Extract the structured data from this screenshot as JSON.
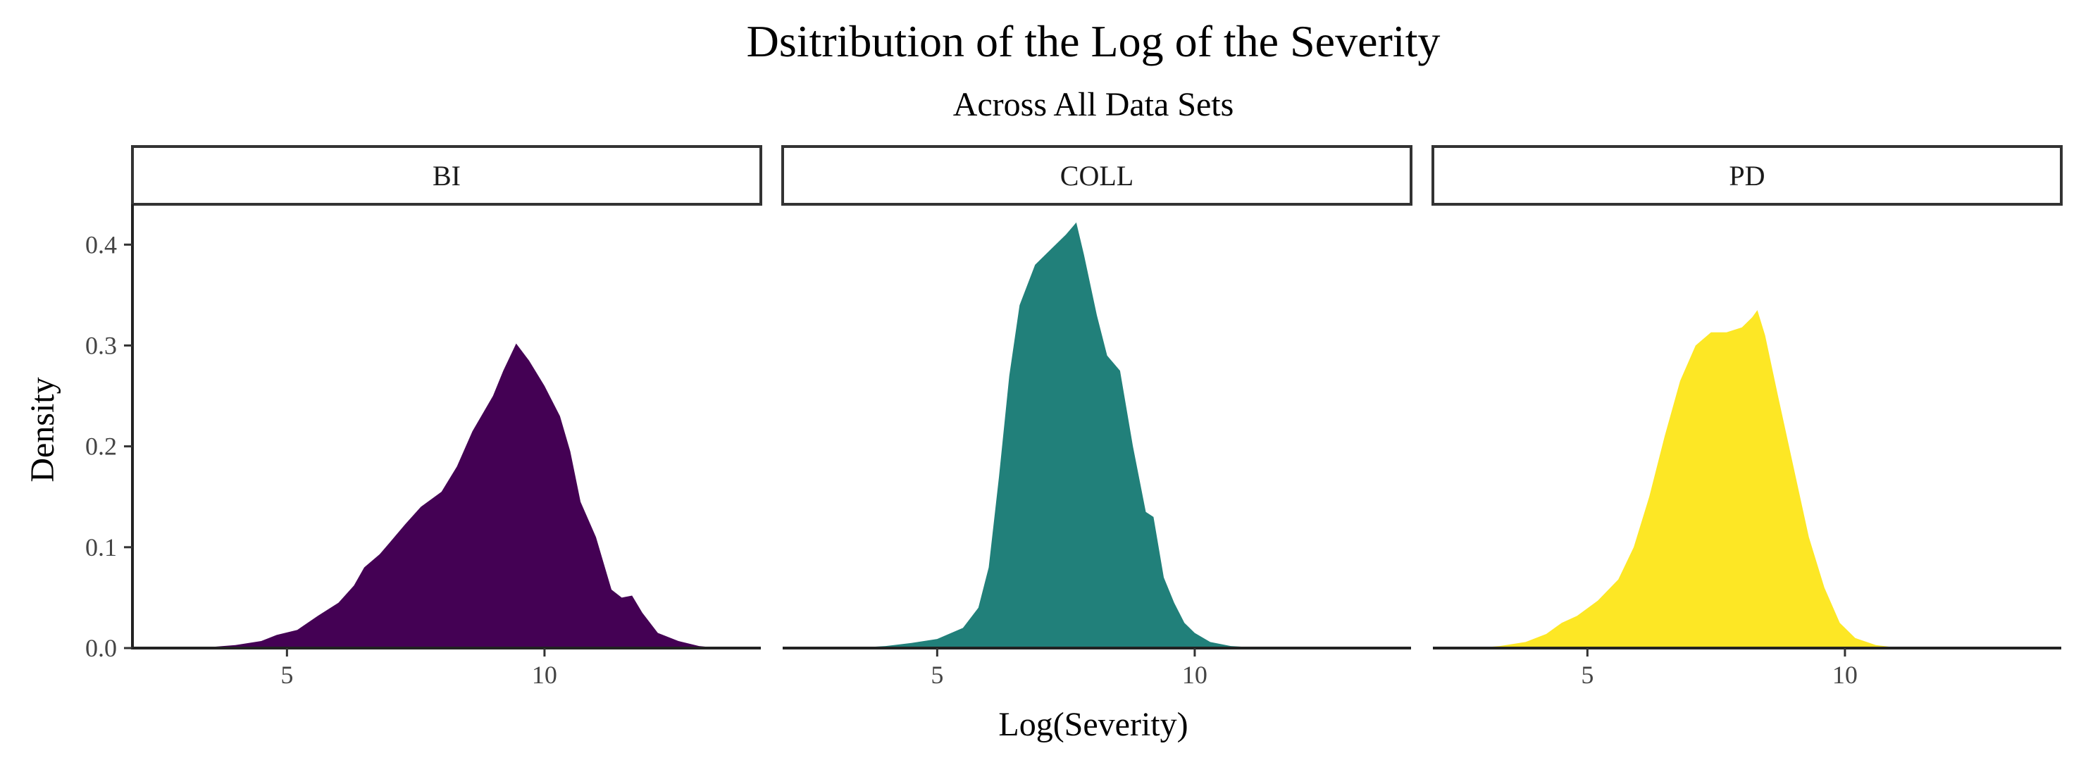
{
  "chart_data": {
    "type": "area",
    "title": "Dsitribution of the Log of the Severity",
    "subtitle": "Across All Data Sets",
    "xlabel": "Log(Severity)",
    "ylabel": "Density",
    "xlim": [
      2.0,
      14.2
    ],
    "ylim": [
      0,
      0.44
    ],
    "x_ticks": [
      5,
      10
    ],
    "y_ticks": [
      "0.0",
      "0.1",
      "0.2",
      "0.3",
      "0.4"
    ],
    "grid": false,
    "legend": "none",
    "panels": [
      {
        "name": "BI",
        "color": "#440154",
        "points": [
          [
            2.8,
            0.0
          ],
          [
            3.5,
            0.001
          ],
          [
            4.0,
            0.003
          ],
          [
            4.5,
            0.007
          ],
          [
            4.8,
            0.013
          ],
          [
            5.2,
            0.018
          ],
          [
            5.6,
            0.032
          ],
          [
            6.0,
            0.045
          ],
          [
            6.3,
            0.062
          ],
          [
            6.5,
            0.08
          ],
          [
            6.8,
            0.093
          ],
          [
            7.0,
            0.105
          ],
          [
            7.3,
            0.123
          ],
          [
            7.6,
            0.14
          ],
          [
            8.0,
            0.155
          ],
          [
            8.3,
            0.18
          ],
          [
            8.6,
            0.215
          ],
          [
            9.0,
            0.25
          ],
          [
            9.2,
            0.275
          ],
          [
            9.45,
            0.302
          ],
          [
            9.7,
            0.285
          ],
          [
            10.0,
            0.26
          ],
          [
            10.3,
            0.23
          ],
          [
            10.5,
            0.195
          ],
          [
            10.7,
            0.145
          ],
          [
            11.0,
            0.11
          ],
          [
            11.3,
            0.058
          ],
          [
            11.5,
            0.05
          ],
          [
            11.7,
            0.052
          ],
          [
            11.9,
            0.035
          ],
          [
            12.2,
            0.015
          ],
          [
            12.6,
            0.007
          ],
          [
            13.0,
            0.002
          ],
          [
            13.4,
            0.0
          ]
        ]
      },
      {
        "name": "COLL",
        "color": "#21807a",
        "points": [
          [
            3.0,
            0.0
          ],
          [
            3.5,
            0.0005
          ],
          [
            4.0,
            0.002
          ],
          [
            4.5,
            0.005
          ],
          [
            5.0,
            0.009
          ],
          [
            5.5,
            0.02
          ],
          [
            5.8,
            0.04
          ],
          [
            6.0,
            0.08
          ],
          [
            6.2,
            0.17
          ],
          [
            6.4,
            0.27
          ],
          [
            6.6,
            0.34
          ],
          [
            6.9,
            0.38
          ],
          [
            7.2,
            0.395
          ],
          [
            7.5,
            0.41
          ],
          [
            7.7,
            0.422
          ],
          [
            7.85,
            0.39
          ],
          [
            8.1,
            0.33
          ],
          [
            8.3,
            0.29
          ],
          [
            8.55,
            0.275
          ],
          [
            8.8,
            0.2
          ],
          [
            9.05,
            0.135
          ],
          [
            9.2,
            0.13
          ],
          [
            9.4,
            0.07
          ],
          [
            9.6,
            0.045
          ],
          [
            9.8,
            0.025
          ],
          [
            10.0,
            0.015
          ],
          [
            10.3,
            0.006
          ],
          [
            10.7,
            0.002
          ],
          [
            11.2,
            0.0005
          ],
          [
            11.8,
            0.0
          ]
        ]
      },
      {
        "name": "PD",
        "color": "#fde725",
        "points": [
          [
            2.8,
            0.0
          ],
          [
            3.3,
            0.002
          ],
          [
            3.8,
            0.006
          ],
          [
            4.2,
            0.014
          ],
          [
            4.5,
            0.025
          ],
          [
            4.8,
            0.032
          ],
          [
            5.2,
            0.047
          ],
          [
            5.6,
            0.068
          ],
          [
            5.9,
            0.1
          ],
          [
            6.2,
            0.15
          ],
          [
            6.5,
            0.21
          ],
          [
            6.8,
            0.265
          ],
          [
            7.1,
            0.3
          ],
          [
            7.4,
            0.313
          ],
          [
            7.7,
            0.313
          ],
          [
            8.0,
            0.318
          ],
          [
            8.2,
            0.328
          ],
          [
            8.3,
            0.335
          ],
          [
            8.45,
            0.31
          ],
          [
            8.7,
            0.25
          ],
          [
            9.0,
            0.18
          ],
          [
            9.3,
            0.11
          ],
          [
            9.6,
            0.06
          ],
          [
            9.9,
            0.025
          ],
          [
            10.2,
            0.01
          ],
          [
            10.6,
            0.003
          ],
          [
            11.0,
            0.0005
          ],
          [
            11.4,
            0.0
          ]
        ]
      }
    ]
  }
}
